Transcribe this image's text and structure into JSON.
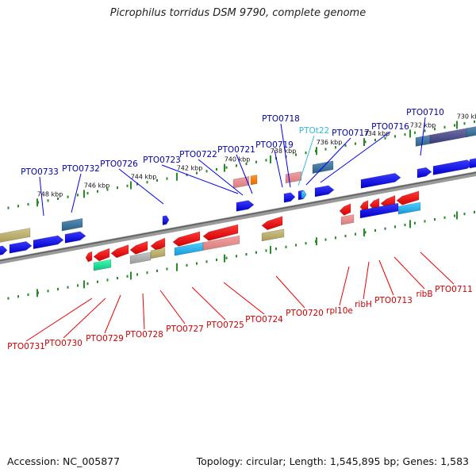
{
  "title": "Picrophilus torridus DSM 9790, complete genome",
  "footer": {
    "accession": "Accession: NC_005877",
    "summary": "Topology: circular; Length: 1,545,895 bp; Genes: 1,583"
  },
  "colors": {
    "forward_gene": "#0000ee",
    "forward_label": "#0000aa",
    "reverse_gene": "#ee0000",
    "reverse_label": "#cc0000",
    "rna_label": "#33bbdd",
    "backbone": "#8c8c8c",
    "tick": "#2a8a2a"
  },
  "scale": {
    "unit": "kbp",
    "labels": [
      "748 kbp",
      "746 kbp",
      "744 kbp",
      "742 kbp",
      "740 kbp",
      "738 kbp",
      "736 kbp",
      "734 kbp",
      "732 kbp",
      "730 kbp"
    ]
  },
  "forward_labels": [
    "PTO0733",
    "PTO0732",
    "PTO0726",
    "PTO0723",
    "PTO0722",
    "PTO0721",
    "PTO0719",
    "PTO0718",
    "PTOt22",
    "PTO0717",
    "PTO0716",
    "PTO0710"
  ],
  "reverse_labels": [
    "PTO0731",
    "PTO0730",
    "PTO0729",
    "PTO0728",
    "PTO0727",
    "PTO0725",
    "PTO0724",
    "PTO0720",
    "rpl10e",
    "ribH",
    "PTO0713",
    "ribB",
    "PTO0711"
  ]
}
